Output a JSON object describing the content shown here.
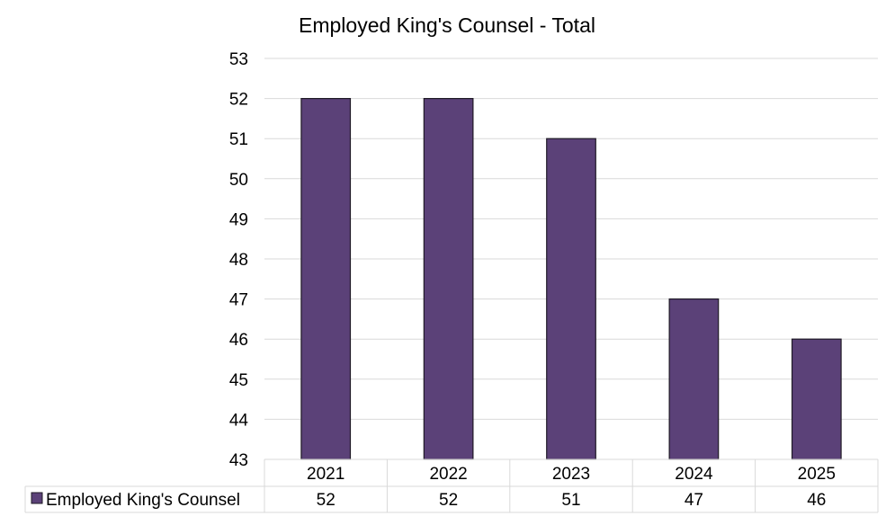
{
  "chart_data": {
    "type": "bar",
    "title": "Employed King's Counsel - Total",
    "categories": [
      "2021",
      "2022",
      "2023",
      "2024",
      "2025"
    ],
    "series": [
      {
        "name": "Employed King's Counsel",
        "values": [
          52,
          52,
          51,
          47,
          46
        ]
      }
    ],
    "ylim": [
      43,
      53
    ],
    "yticks": [
      "43",
      "44",
      "45",
      "46",
      "47",
      "48",
      "49",
      "50",
      "51",
      "52",
      "53"
    ],
    "data_table": {
      "row_label": "Employed King's Counsel",
      "values": [
        "52",
        "52",
        "51",
        "47",
        "46"
      ]
    },
    "grid": "horizontal",
    "legend": "data-table-left",
    "colors": {
      "bar_fill": "#5b4178",
      "bar_stroke": "#1f1a26",
      "grid": "#d9d9d9",
      "table_border": "#d9d9d9"
    }
  }
}
